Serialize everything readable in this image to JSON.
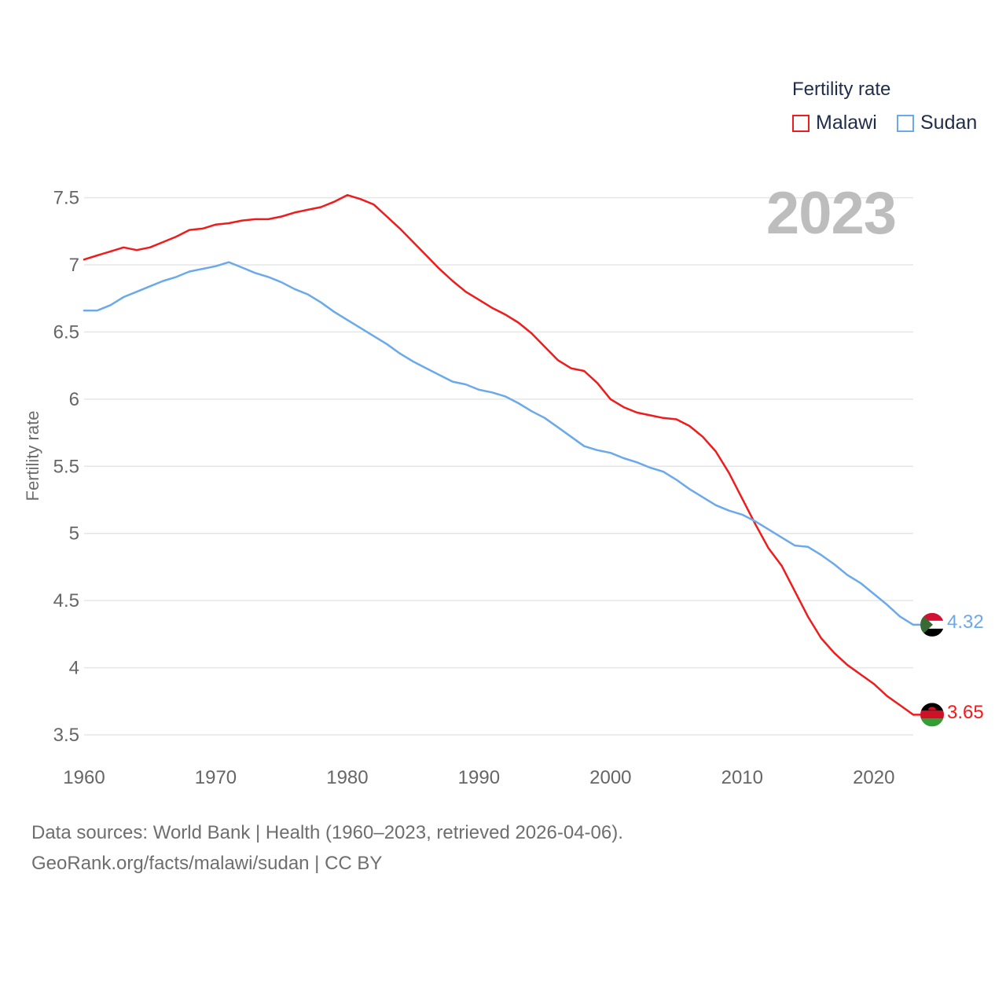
{
  "legend": {
    "title": "Fertility rate",
    "items": [
      {
        "label": "Malawi",
        "color": "#ee1c1c"
      },
      {
        "label": "Sudan",
        "color": "#6aa9ea"
      }
    ]
  },
  "year_label": "2023",
  "footer": {
    "line1": "Data sources: World Bank | Health (1960–2023, retrieved 2026-04-06).",
    "line2": "GeoRank.org/facts/malawi/sudan | CC BY"
  },
  "end_labels": {
    "malawi": "3.65",
    "sudan": "4.32"
  },
  "flags": {
    "malawi": "malawi-flag-icon",
    "sudan": "sudan-flag-icon"
  },
  "chart_data": {
    "type": "line",
    "title": "",
    "xlabel": "",
    "ylabel": "Fertility rate",
    "xlim": [
      1960,
      2023
    ],
    "ylim": [
      3.35,
      7.6
    ],
    "yticks": [
      3.5,
      4,
      4.5,
      5,
      5.5,
      6,
      6.5,
      7,
      7.5
    ],
    "ytick_labels": [
      "3.5",
      "4",
      "4.5",
      "5",
      "5.5",
      "6",
      "6.5",
      "7",
      "7.5"
    ],
    "xticks": [
      1960,
      1970,
      1980,
      1990,
      2000,
      2010,
      2020
    ],
    "xtick_labels": [
      "1960",
      "1970",
      "1980",
      "1990",
      "2000",
      "2010",
      "2020"
    ],
    "x": [
      1960,
      1961,
      1962,
      1963,
      1964,
      1965,
      1966,
      1967,
      1968,
      1969,
      1970,
      1971,
      1972,
      1973,
      1974,
      1975,
      1976,
      1977,
      1978,
      1979,
      1980,
      1981,
      1982,
      1983,
      1984,
      1985,
      1986,
      1987,
      1988,
      1989,
      1990,
      1991,
      1992,
      1993,
      1994,
      1995,
      1996,
      1997,
      1998,
      1999,
      2000,
      2001,
      2002,
      2003,
      2004,
      2005,
      2006,
      2007,
      2008,
      2009,
      2010,
      2011,
      2012,
      2013,
      2014,
      2015,
      2016,
      2017,
      2018,
      2019,
      2020,
      2021,
      2022,
      2023
    ],
    "series": [
      {
        "name": "Malawi",
        "color": "#ee1c1c",
        "values": [
          7.04,
          7.07,
          7.1,
          7.13,
          7.11,
          7.13,
          7.17,
          7.21,
          7.26,
          7.27,
          7.3,
          7.31,
          7.33,
          7.34,
          7.34,
          7.36,
          7.39,
          7.41,
          7.43,
          7.47,
          7.52,
          7.49,
          7.45,
          7.36,
          7.27,
          7.17,
          7.07,
          6.97,
          6.88,
          6.8,
          6.74,
          6.68,
          6.63,
          6.57,
          6.49,
          6.39,
          6.29,
          6.23,
          6.21,
          6.12,
          6.0,
          5.94,
          5.9,
          5.88,
          5.86,
          5.85,
          5.8,
          5.72,
          5.61,
          5.45,
          5.26,
          5.07,
          4.89,
          4.76,
          4.57,
          4.38,
          4.22,
          4.11,
          4.02,
          3.95,
          3.88,
          3.79,
          3.72,
          3.65
        ]
      },
      {
        "name": "Sudan",
        "color": "#6aa9ea",
        "values": [
          6.66,
          6.66,
          6.7,
          6.76,
          6.8,
          6.84,
          6.88,
          6.91,
          6.95,
          6.97,
          6.99,
          7.02,
          6.98,
          6.94,
          6.91,
          6.87,
          6.82,
          6.78,
          6.72,
          6.65,
          6.59,
          6.53,
          6.47,
          6.41,
          6.34,
          6.28,
          6.23,
          6.18,
          6.13,
          6.11,
          6.07,
          6.05,
          6.02,
          5.97,
          5.91,
          5.86,
          5.79,
          5.72,
          5.65,
          5.62,
          5.6,
          5.56,
          5.53,
          5.49,
          5.46,
          5.4,
          5.33,
          5.27,
          5.21,
          5.17,
          5.14,
          5.09,
          5.03,
          4.97,
          4.91,
          4.9,
          4.84,
          4.77,
          4.69,
          4.63,
          4.55,
          4.47,
          4.38,
          4.32
        ]
      }
    ]
  }
}
